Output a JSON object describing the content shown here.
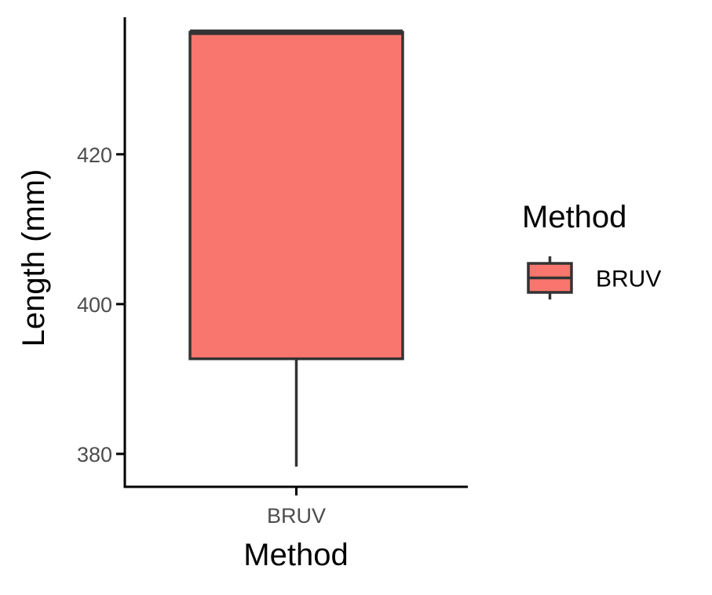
{
  "chart_data": {
    "type": "box",
    "xlabel": "Method",
    "ylabel": "Length (mm)",
    "categories": [
      "BRUV"
    ],
    "boxes": [
      {
        "category": "BRUV",
        "min": 378.3,
        "q1": 392.7,
        "median": 436.3,
        "q3": 436.3,
        "max": 436.3
      }
    ],
    "ylim": [
      375.5,
      438.3
    ],
    "yticks": [
      380,
      400,
      420
    ],
    "legend": {
      "title": "Method",
      "position": "right",
      "entries": [
        {
          "label": "BRUV"
        }
      ]
    },
    "colors": {
      "box_fill": "#F8766D",
      "box_stroke": "#333333",
      "axis": "#000000",
      "tick_label": "#4d4d4d"
    }
  }
}
